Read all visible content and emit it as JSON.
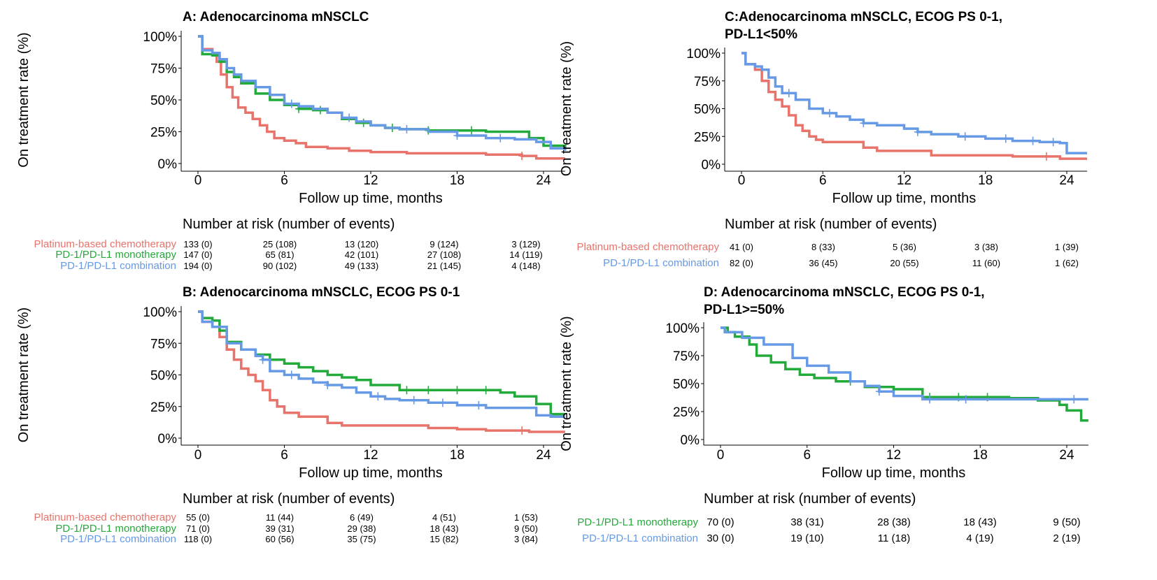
{
  "colors": {
    "chemo": "#e8736b",
    "mono": "#22aa3a",
    "combo": "#6699e6"
  },
  "chart_data": [
    {
      "id": "A",
      "type": "line",
      "title": [
        "A: Adenocarcinoma mNSCLC"
      ],
      "xlabel": "Follow up time, months",
      "ylabel": "On treatment rate (%)",
      "xlim": [
        0,
        25.5
      ],
      "ylim": [
        0,
        100
      ],
      "xticks": [
        0,
        6,
        12,
        18,
        24
      ],
      "xtick_labels": [
        "0",
        "6",
        "12",
        "18",
        "24"
      ],
      "yticks": [
        0,
        25,
        50,
        75,
        100
      ],
      "ytick_labels": [
        "0%",
        "25%",
        "50%",
        "75%",
        "100%"
      ],
      "risk_title": "Number at risk (number of events)",
      "series": [
        {
          "name": "Platinum-based chemotherapy",
          "key": "chemo",
          "x": [
            0,
            0.3,
            1.0,
            1.3,
            1.6,
            2.0,
            2.4,
            2.8,
            3.3,
            3.8,
            4.3,
            4.8,
            5.3,
            6.0,
            6.8,
            7.5,
            9.0,
            10.5,
            12.0,
            14.5,
            17.0,
            20.0,
            22.5,
            23.5,
            25.5
          ],
          "y": [
            100,
            90,
            86,
            80,
            70,
            60,
            52,
            44,
            40,
            35,
            30,
            25,
            20,
            18,
            16,
            13,
            12,
            10,
            9,
            8,
            8,
            7,
            6,
            4,
            4
          ],
          "censor": [
            22.5
          ]
        },
        {
          "name": "PD-1/PD-L1 monotherapy",
          "key": "mono",
          "x": [
            0,
            0.3,
            1.0,
            1.5,
            2.0,
            2.5,
            3.0,
            4.0,
            5.0,
            6.0,
            7.0,
            8.0,
            9.0,
            10.0,
            11.0,
            12.0,
            13.0,
            14.0,
            16.0,
            18.0,
            20.0,
            22.0,
            23.0,
            24.0,
            25.5
          ],
          "y": [
            100,
            86,
            85,
            80,
            72,
            68,
            63,
            55,
            50,
            46,
            43,
            42,
            40,
            35,
            32,
            30,
            28,
            27,
            26,
            26,
            25,
            25,
            20,
            14,
            12
          ],
          "censor": [
            7.0,
            8.5,
            11.5,
            13.5,
            16.0,
            19.0
          ]
        },
        {
          "name": "PD-1/PD-L1 combination",
          "key": "combo",
          "x": [
            0,
            0.3,
            1.0,
            1.5,
            2.0,
            2.5,
            3.0,
            4.0,
            5.0,
            6.0,
            7.0,
            8.0,
            9.0,
            10.0,
            11.0,
            12.0,
            13.0,
            14.0,
            16.0,
            18.0,
            20.0,
            22.0,
            23.5,
            24.5,
            25.5
          ],
          "y": [
            100,
            89,
            87,
            82,
            75,
            70,
            65,
            60,
            54,
            47,
            45,
            43,
            40,
            36,
            33,
            30,
            28,
            27,
            25,
            22,
            20,
            19,
            17,
            12,
            10
          ],
          "censor": [
            6.5,
            10.5,
            14.5,
            18.0,
            21.0
          ]
        }
      ],
      "risk": [
        {
          "name": "Platinum-based chemotherapy",
          "key": "chemo",
          "values": [
            "133 (0)",
            "25 (108)",
            "13 (120)",
            "9 (124)",
            "3 (129)"
          ]
        },
        {
          "name": "PD-1/PD-L1 monotherapy",
          "key": "mono",
          "values": [
            "147 (0)",
            "65 (81)",
            "42 (101)",
            "27 (108)",
            "14 (119)"
          ]
        },
        {
          "name": "PD-1/PD-L1 combination",
          "key": "combo",
          "values": [
            "194 (0)",
            "90 (102)",
            "49 (133)",
            "21 (145)",
            "4 (148)"
          ]
        }
      ]
    },
    {
      "id": "C",
      "type": "line",
      "title": [
        "C:Adenocarcinoma mNSCLC, ECOG PS 0-1,",
        "PD-L1<50%"
      ],
      "xlabel": "Follow up time, months",
      "ylabel": "On treatment rate (%)",
      "xlim": [
        0,
        25.5
      ],
      "ylim": [
        0,
        100
      ],
      "xticks": [
        0,
        6,
        12,
        18,
        24
      ],
      "xtick_labels": [
        "0",
        "6",
        "12",
        "18",
        "24"
      ],
      "yticks": [
        0,
        25,
        50,
        75,
        100
      ],
      "ytick_labels": [
        "0%",
        "25%",
        "50%",
        "75%",
        "100%"
      ],
      "risk_title": "Number at risk (number of events)",
      "series": [
        {
          "name": "Platinum-based chemotherapy",
          "key": "chemo",
          "x": [
            0,
            0.3,
            1.0,
            1.5,
            2.0,
            2.5,
            3.0,
            3.5,
            4.0,
            4.5,
            5.0,
            5.5,
            6.0,
            7.5,
            9.0,
            10.0,
            12.0,
            14.0,
            16.0,
            18.0,
            20.0,
            22.0,
            23.5,
            25.5
          ],
          "y": [
            100,
            90,
            85,
            75,
            65,
            58,
            52,
            44,
            35,
            30,
            25,
            22,
            20,
            20,
            15,
            12,
            12,
            8,
            8,
            8,
            7,
            7,
            5,
            5
          ],
          "censor": [
            22.5
          ]
        },
        {
          "name": "PD-1/PD-L1 combination",
          "key": "combo",
          "x": [
            0,
            0.3,
            1.0,
            1.5,
            2.0,
            2.5,
            3.0,
            4.0,
            5.0,
            6.0,
            7.0,
            8.0,
            9.0,
            10.0,
            12.0,
            13.0,
            14.0,
            16.0,
            18.0,
            20.0,
            22.0,
            23.5,
            24.0,
            25.5
          ],
          "y": [
            100,
            90,
            88,
            85,
            78,
            70,
            64,
            58,
            50,
            46,
            43,
            40,
            37,
            35,
            32,
            29,
            27,
            25,
            23,
            21,
            20,
            19,
            10,
            10
          ],
          "censor": [
            3.5,
            6.5,
            9.0,
            13.0,
            16.5,
            19.5,
            21.5,
            23.0
          ]
        }
      ],
      "risk": [
        {
          "name": "Platinum-based chemotherapy",
          "key": "chemo",
          "values": [
            "41 (0)",
            "8 (33)",
            "5 (36)",
            "3 (38)",
            "1 (39)"
          ]
        },
        {
          "name": "PD-1/PD-L1 combination",
          "key": "combo",
          "values": [
            "82 (0)",
            "36 (45)",
            "20 (55)",
            "11 (60)",
            "1 (62)"
          ]
        }
      ]
    },
    {
      "id": "B",
      "type": "line",
      "title": [
        "B: Adenocarcinoma mNSCLC, ECOG PS 0-1"
      ],
      "xlabel": "Follow up time, months",
      "ylabel": "On treatment rate (%)",
      "xlim": [
        0,
        25.5
      ],
      "ylim": [
        0,
        100
      ],
      "xticks": [
        0,
        6,
        12,
        18,
        24
      ],
      "xtick_labels": [
        "0",
        "6",
        "12",
        "18",
        "24"
      ],
      "yticks": [
        0,
        25,
        50,
        75,
        100
      ],
      "ytick_labels": [
        "0%",
        "25%",
        "50%",
        "75%",
        "100%"
      ],
      "risk_title": "Number at risk (number of events)",
      "series": [
        {
          "name": "Platinum-based chemotherapy",
          "key": "chemo",
          "x": [
            0,
            0.3,
            1.0,
            1.5,
            2.0,
            2.5,
            3.0,
            3.5,
            4.0,
            4.5,
            5.0,
            5.5,
            6.0,
            7.0,
            9.0,
            10.0,
            12.0,
            14.0,
            16.0,
            18.0,
            20.0,
            22.0,
            23.0,
            25.5
          ],
          "y": [
            100,
            92,
            88,
            80,
            70,
            62,
            55,
            50,
            45,
            38,
            30,
            25,
            20,
            17,
            12,
            10,
            10,
            10,
            8,
            7,
            6,
            6,
            5,
            5
          ],
          "censor": [
            22.5
          ]
        },
        {
          "name": "PD-1/PD-L1 monotherapy",
          "key": "mono",
          "x": [
            0,
            0.3,
            1.0,
            1.5,
            2.0,
            3.0,
            4.0,
            5.0,
            6.0,
            7.0,
            8.0,
            9.0,
            10.0,
            11.0,
            12.0,
            14.0,
            16.0,
            18.0,
            20.0,
            21.0,
            22.0,
            23.5,
            24.5,
            25.5
          ],
          "y": [
            100,
            95,
            93,
            85,
            76,
            70,
            66,
            62,
            59,
            56,
            53,
            50,
            48,
            46,
            42,
            38,
            38,
            38,
            38,
            36,
            33,
            27,
            19,
            19
          ],
          "censor": [
            14.5,
            16.0,
            18.0,
            20.0
          ]
        },
        {
          "name": "PD-1/PD-L1 combination",
          "key": "combo",
          "x": [
            0,
            0.3,
            1.0,
            2.0,
            3.0,
            4.0,
            4.5,
            5.0,
            6.0,
            7.0,
            8.0,
            9.0,
            10.0,
            11.0,
            12.0,
            13.0,
            14.0,
            16.0,
            18.0,
            20.0,
            22.0,
            23.5,
            24.5,
            25.5
          ],
          "y": [
            100,
            92,
            88,
            75,
            70,
            65,
            62,
            53,
            50,
            47,
            44,
            42,
            40,
            36,
            33,
            31,
            30,
            28,
            26,
            24,
            24,
            18,
            17,
            17
          ],
          "censor": [
            4.5,
            6.5,
            9.0,
            12.5,
            15.0,
            17.0,
            19.5
          ]
        }
      ],
      "risk": [
        {
          "name": "Platinum-based chemotherapy",
          "key": "chemo",
          "values": [
            "55 (0)",
            "11 (44)",
            "6 (49)",
            "4 (51)",
            "1 (53)"
          ]
        },
        {
          "name": "PD-1/PD-L1 monotherapy",
          "key": "mono",
          "values": [
            "71 (0)",
            "39 (31)",
            "29 (38)",
            "18 (43)",
            "9 (50)"
          ]
        },
        {
          "name": "PD-1/PD-L1 combination",
          "key": "combo",
          "values": [
            "118 (0)",
            "60 (56)",
            "35 (75)",
            "15 (82)",
            "3 (84)"
          ]
        }
      ]
    },
    {
      "id": "D",
      "type": "line",
      "title": [
        "D: Adenocarcinoma mNSCLC, ECOG PS 0-1,",
        "PD-L1>=50%"
      ],
      "xlabel": "Follow up time, months",
      "ylabel": "On treatment rate (%)",
      "xlim": [
        0,
        25.5
      ],
      "ylim": [
        0,
        100
      ],
      "xticks": [
        0,
        6,
        12,
        18,
        24
      ],
      "xtick_labels": [
        "0",
        "6",
        "12",
        "18",
        "24"
      ],
      "yticks": [
        0,
        25,
        50,
        75,
        100
      ],
      "ytick_labels": [
        "0%",
        "25%",
        "50%",
        "75%",
        "100%"
      ],
      "risk_title": "Number at risk (number of events)",
      "series": [
        {
          "name": "PD-1/PD-L1 monotherapy",
          "key": "mono",
          "x": [
            0,
            0.5,
            1.0,
            2.0,
            2.5,
            3.5,
            4.5,
            5.5,
            6.5,
            8.0,
            10.0,
            12.0,
            14.0,
            16.0,
            18.0,
            20.0,
            22.0,
            23.5,
            24.0,
            25.0,
            25.5
          ],
          "y": [
            100,
            96,
            92,
            85,
            75,
            69,
            63,
            58,
            55,
            52,
            47,
            45,
            38,
            38,
            38,
            37,
            35,
            31,
            26,
            17,
            17
          ],
          "censor": [
            9.0,
            14.5,
            16.5,
            18.5
          ]
        },
        {
          "name": "PD-1/PD-L1 combination",
          "key": "combo",
          "x": [
            0,
            0.3,
            1.5,
            3.0,
            5.0,
            6.0,
            7.5,
            9.0,
            10.0,
            11.0,
            12.0,
            14.0,
            16.0,
            18.0,
            20.0,
            22.0,
            25.5
          ],
          "y": [
            100,
            96,
            91,
            85,
            73,
            66,
            60,
            52,
            48,
            43,
            39,
            36,
            36,
            36,
            36,
            36,
            36
          ],
          "censor": [
            11.0,
            14.5,
            17.0,
            24.5
          ]
        }
      ],
      "risk": [
        {
          "name": "PD-1/PD-L1 monotherapy",
          "key": "mono",
          "values": [
            "70 (0)",
            "38 (31)",
            "28 (38)",
            "18 (43)",
            "9 (50)"
          ]
        },
        {
          "name": "PD-1/PD-L1 combination",
          "key": "combo",
          "values": [
            "30 (0)",
            "19 (10)",
            "11 (18)",
            "4 (19)",
            "2 (19)"
          ]
        }
      ]
    }
  ]
}
